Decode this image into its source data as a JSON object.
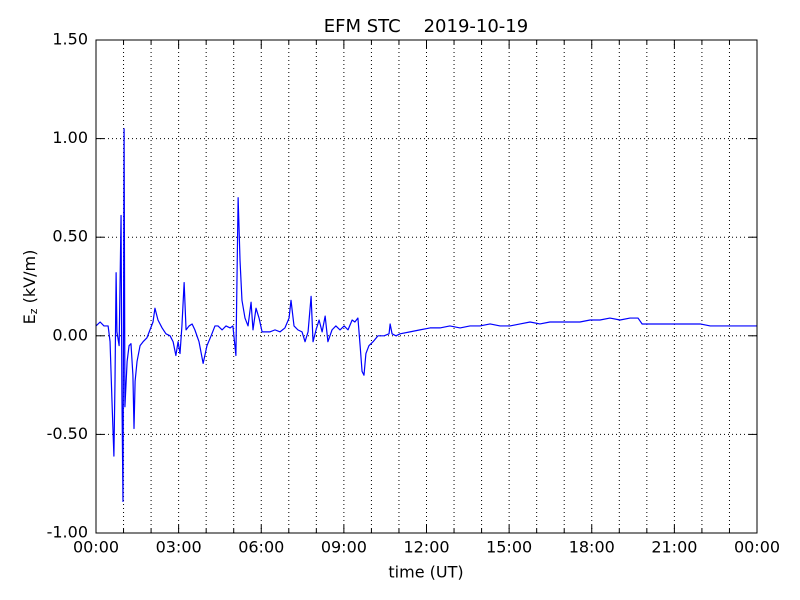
{
  "chart_data": {
    "type": "line",
    "title": "EFM STC    2019-10-19",
    "xlabel": "time (UT)",
    "ylabel": {
      "base": "E",
      "sub": "z",
      "unit": " (kV/m)"
    },
    "xlim": [
      0,
      24
    ],
    "ylim": [
      -1.0,
      1.5
    ],
    "xticks": [
      {
        "value": 0,
        "label": "00:00"
      },
      {
        "value": 3,
        "label": "03:00"
      },
      {
        "value": 6,
        "label": "06:00"
      },
      {
        "value": 9,
        "label": "09:00"
      },
      {
        "value": 12,
        "label": "12:00"
      },
      {
        "value": 15,
        "label": "15:00"
      },
      {
        "value": 18,
        "label": "18:00"
      },
      {
        "value": 21,
        "label": "21:00"
      },
      {
        "value": 24,
        "label": "00:00"
      }
    ],
    "x_minor_ticks": [
      1,
      2,
      4,
      5,
      7,
      8,
      10,
      11,
      13,
      14,
      16,
      17,
      19,
      20,
      22,
      23
    ],
    "yticks": [
      {
        "value": -1.0,
        "label": "-1.00"
      },
      {
        "value": -0.5,
        "label": "-0.50"
      },
      {
        "value": 0,
        "label": "0.00"
      },
      {
        "value": 0.5,
        "label": "0.50"
      },
      {
        "value": 1.0,
        "label": "1.00"
      },
      {
        "value": 1.5,
        "label": "1.50"
      }
    ],
    "grid": true,
    "series": [
      {
        "color": "#0000ff",
        "x": [
          0,
          0.15,
          0.29,
          0.44,
          0.51,
          0.58,
          0.65,
          0.69,
          0.73,
          0.76,
          0.84,
          0.91,
          0.94,
          0.98,
          1.02,
          1.05,
          1.13,
          1.2,
          1.27,
          1.34,
          1.38,
          1.42,
          1.49,
          1.6,
          1.71,
          1.85,
          1.96,
          2.07,
          2.14,
          2.25,
          2.4,
          2.54,
          2.69,
          2.8,
          2.9,
          2.98,
          3.05,
          3.12,
          3.2,
          3.27,
          3.38,
          3.49,
          3.59,
          3.74,
          3.89,
          4.03,
          4.18,
          4.32,
          4.43,
          4.58,
          4.72,
          4.87,
          4.97,
          5.08,
          5.16,
          5.23,
          5.3,
          5.41,
          5.52,
          5.63,
          5.7,
          5.81,
          5.92,
          6.03,
          6.17,
          6.32,
          6.5,
          6.68,
          6.86,
          7.01,
          7.08,
          7.19,
          7.33,
          7.48,
          7.59,
          7.7,
          7.81,
          7.88,
          7.99,
          8.1,
          8.21,
          8.32,
          8.42,
          8.57,
          8.71,
          8.86,
          9.01,
          9.15,
          9.3,
          9.4,
          9.51,
          9.59,
          9.66,
          9.73,
          9.8,
          9.91,
          10.06,
          10.24,
          10.46,
          10.64,
          10.68,
          10.75,
          10.89,
          11.04,
          11.4,
          11.76,
          12.13,
          12.49,
          12.85,
          13.22,
          13.58,
          13.94,
          14.31,
          14.67,
          15.03,
          15.4,
          15.76,
          16.12,
          16.48,
          16.85,
          17.21,
          17.57,
          17.94,
          18.3,
          18.66,
          19.03,
          19.39,
          19.68,
          19.83,
          20.12,
          20.49,
          20.85,
          21.21,
          21.58,
          21.94,
          22.3,
          22.66,
          23.03,
          23.39,
          23.75,
          24.0
        ],
        "values": [
          0.05,
          0.07,
          0.05,
          0.05,
          -0.03,
          -0.33,
          -0.61,
          -0.23,
          0.32,
          0.02,
          -0.05,
          0.61,
          -0.28,
          -0.84,
          1.05,
          -0.36,
          -0.13,
          -0.05,
          -0.04,
          -0.2,
          -0.47,
          -0.23,
          -0.13,
          -0.05,
          -0.03,
          -0.01,
          0.03,
          0.07,
          0.14,
          0.08,
          0.04,
          0.01,
          0.0,
          -0.03,
          -0.1,
          -0.03,
          -0.09,
          0.05,
          0.27,
          0.03,
          0.05,
          0.06,
          0.03,
          -0.03,
          -0.14,
          -0.05,
          0.0,
          0.05,
          0.05,
          0.03,
          0.05,
          0.04,
          0.05,
          -0.1,
          0.7,
          0.38,
          0.18,
          0.09,
          0.05,
          0.17,
          0.03,
          0.14,
          0.09,
          0.02,
          0.02,
          0.02,
          0.03,
          0.02,
          0.04,
          0.09,
          0.18,
          0.05,
          0.03,
          0.02,
          -0.03,
          0.02,
          0.2,
          -0.03,
          0.03,
          0.08,
          0.02,
          0.1,
          -0.03,
          0.03,
          0.05,
          0.03,
          0.05,
          0.03,
          0.08,
          0.07,
          0.09,
          -0.05,
          -0.18,
          -0.2,
          -0.09,
          -0.05,
          -0.03,
          0.0,
          0.0,
          0.01,
          0.06,
          0.01,
          0.0,
          0.01,
          0.02,
          0.03,
          0.04,
          0.04,
          0.05,
          0.04,
          0.05,
          0.05,
          0.06,
          0.05,
          0.05,
          0.06,
          0.07,
          0.06,
          0.07,
          0.07,
          0.07,
          0.07,
          0.08,
          0.08,
          0.09,
          0.08,
          0.09,
          0.09,
          0.06,
          0.06,
          0.06,
          0.06,
          0.06,
          0.06,
          0.06,
          0.05,
          0.05,
          0.05,
          0.05,
          0.05,
          0.05
        ]
      }
    ]
  }
}
